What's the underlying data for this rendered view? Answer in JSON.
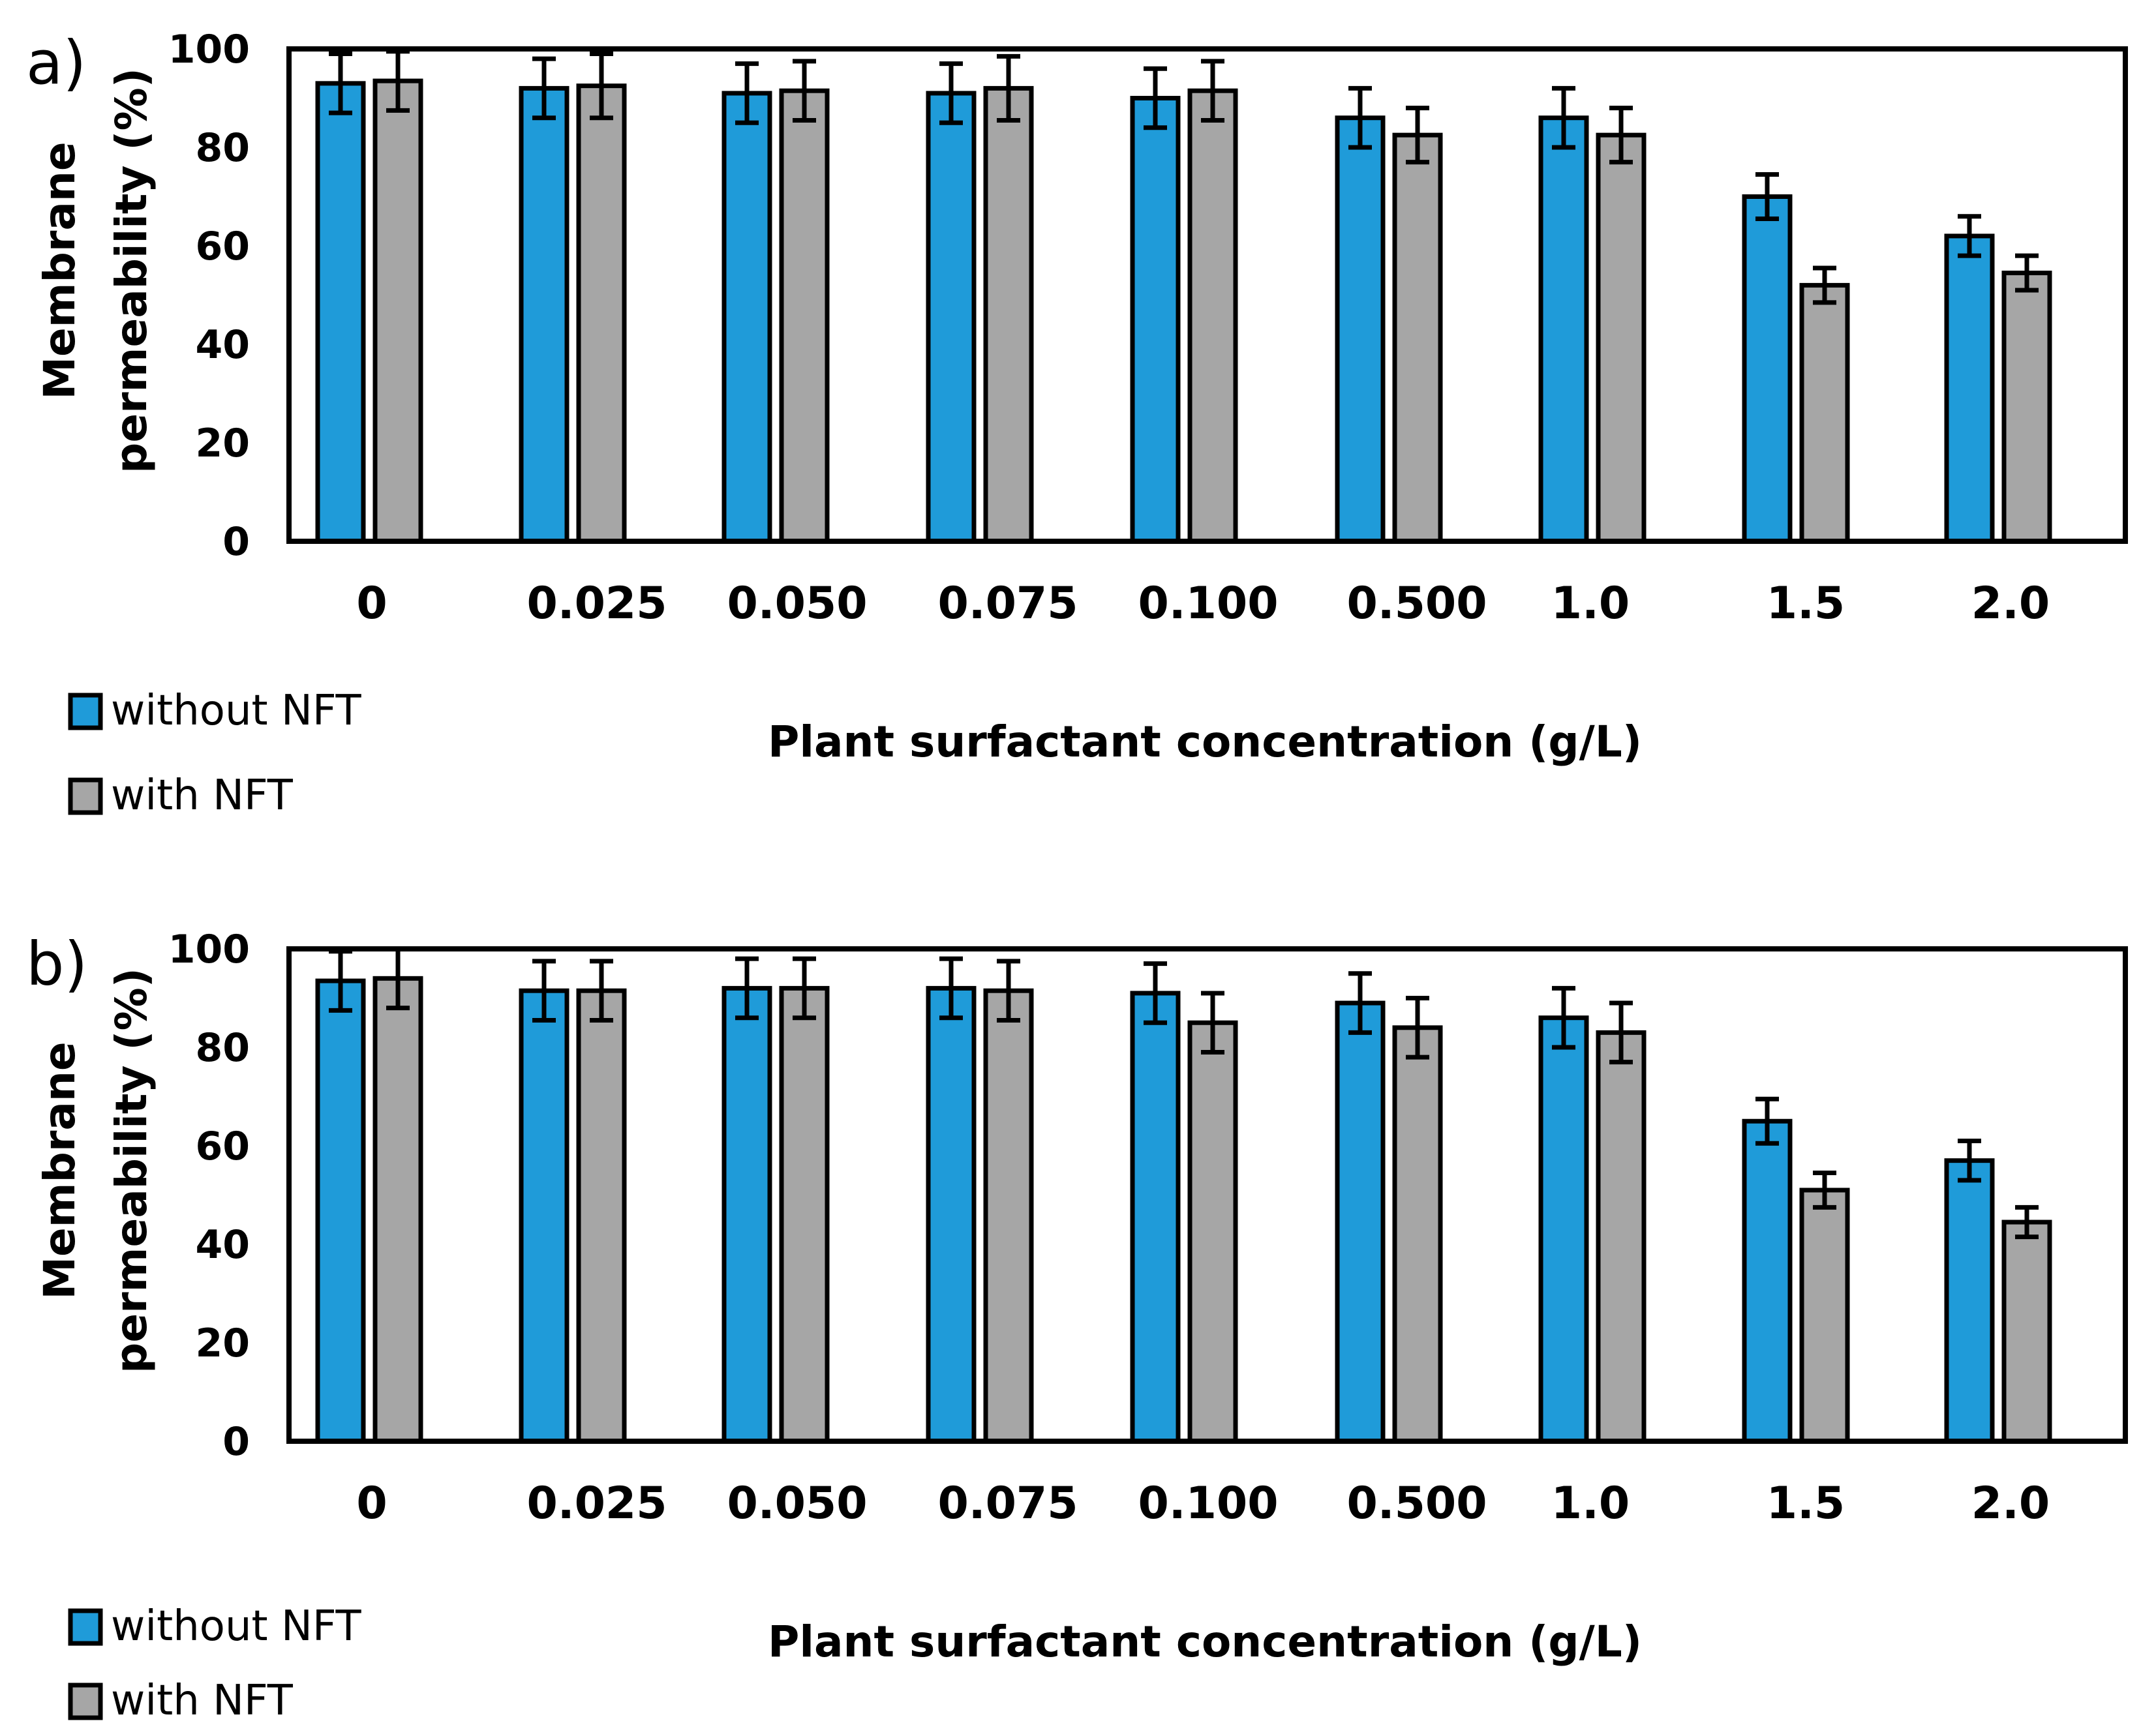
{
  "chart_data": [
    {
      "type": "bar",
      "panel_label": "a)",
      "categories": [
        "0",
        "0.025",
        "0.050",
        "0.075",
        "0.100",
        "0.500",
        "1.0",
        "1.5",
        "2.0"
      ],
      "series": [
        {
          "name": "without NFT",
          "color": "#1f9bd9",
          "values": [
            93,
            92,
            91,
            91,
            90,
            86,
            86,
            70,
            62
          ],
          "errors": [
            6,
            6,
            6,
            6,
            6,
            6,
            6,
            4.5,
            4
          ]
        },
        {
          "name": "with NFT",
          "color": "#a6a6a6",
          "values": [
            93.5,
            92.5,
            91.5,
            92,
            91.5,
            82.5,
            82.5,
            52,
            54.5
          ],
          "errors": [
            6,
            6.5,
            6,
            6.5,
            6,
            5.5,
            5.5,
            3.5,
            3.5
          ]
        }
      ],
      "ylabel_lines": [
        "Membrane",
        "permeability (%)"
      ],
      "xlabel": "Plant surfactant concentration (g/L)",
      "ylim": [
        0,
        100
      ],
      "yticks": [
        "0",
        "20",
        "40",
        "60",
        "80",
        "100"
      ],
      "legend": "bottom-left"
    },
    {
      "type": "bar",
      "panel_label": "b)",
      "categories": [
        "0",
        "0.025",
        "0.050",
        "0.075",
        "0.100",
        "0.500",
        "1.0",
        "1.5",
        "2.0"
      ],
      "series": [
        {
          "name": "without NFT",
          "color": "#1f9bd9",
          "values": [
            93.5,
            91.5,
            92,
            92,
            91,
            89,
            86,
            65,
            57
          ],
          "errors": [
            6,
            6,
            6,
            6,
            6,
            6,
            6,
            4.5,
            4
          ]
        },
        {
          "name": "with NFT",
          "color": "#a6a6a6",
          "values": [
            94,
            91.5,
            92,
            91.5,
            85,
            84,
            83,
            51,
            44.5
          ],
          "errors": [
            6,
            6,
            6,
            6,
            6,
            6,
            6,
            3.5,
            3
          ]
        }
      ],
      "ylabel_lines": [
        "Membrane",
        "permeability (%)"
      ],
      "xlabel": "Plant surfactant concentration (g/L)",
      "ylim": [
        0,
        100
      ],
      "yticks": [
        "0",
        "20",
        "40",
        "60",
        "80",
        "100"
      ],
      "legend": "bottom-left"
    }
  ]
}
